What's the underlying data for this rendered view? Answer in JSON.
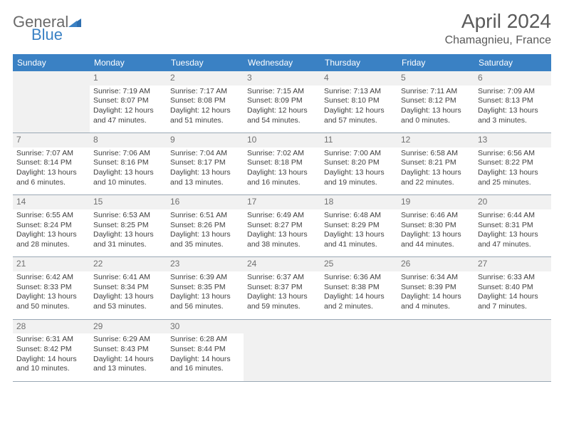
{
  "brand": {
    "general": "General",
    "blue": "Blue"
  },
  "title": "April 2024",
  "location": "Chamagnieu, France",
  "colors": {
    "header_bg": "#3a81c4",
    "header_fg": "#ffffff",
    "text": "#404040",
    "daynum_bg": "#f1f1f1",
    "border": "#9aa8b5",
    "brand_gray": "#6a6a6a",
    "brand_blue": "#3a81c4"
  },
  "day_labels": [
    "Sunday",
    "Monday",
    "Tuesday",
    "Wednesday",
    "Thursday",
    "Friday",
    "Saturday"
  ],
  "weeks": [
    [
      null,
      {
        "n": "1",
        "sr": "Sunrise: 7:19 AM",
        "ss": "Sunset: 8:07 PM",
        "d1": "Daylight: 12 hours",
        "d2": "and 47 minutes."
      },
      {
        "n": "2",
        "sr": "Sunrise: 7:17 AM",
        "ss": "Sunset: 8:08 PM",
        "d1": "Daylight: 12 hours",
        "d2": "and 51 minutes."
      },
      {
        "n": "3",
        "sr": "Sunrise: 7:15 AM",
        "ss": "Sunset: 8:09 PM",
        "d1": "Daylight: 12 hours",
        "d2": "and 54 minutes."
      },
      {
        "n": "4",
        "sr": "Sunrise: 7:13 AM",
        "ss": "Sunset: 8:10 PM",
        "d1": "Daylight: 12 hours",
        "d2": "and 57 minutes."
      },
      {
        "n": "5",
        "sr": "Sunrise: 7:11 AM",
        "ss": "Sunset: 8:12 PM",
        "d1": "Daylight: 13 hours",
        "d2": "and 0 minutes."
      },
      {
        "n": "6",
        "sr": "Sunrise: 7:09 AM",
        "ss": "Sunset: 8:13 PM",
        "d1": "Daylight: 13 hours",
        "d2": "and 3 minutes."
      }
    ],
    [
      {
        "n": "7",
        "sr": "Sunrise: 7:07 AM",
        "ss": "Sunset: 8:14 PM",
        "d1": "Daylight: 13 hours",
        "d2": "and 6 minutes."
      },
      {
        "n": "8",
        "sr": "Sunrise: 7:06 AM",
        "ss": "Sunset: 8:16 PM",
        "d1": "Daylight: 13 hours",
        "d2": "and 10 minutes."
      },
      {
        "n": "9",
        "sr": "Sunrise: 7:04 AM",
        "ss": "Sunset: 8:17 PM",
        "d1": "Daylight: 13 hours",
        "d2": "and 13 minutes."
      },
      {
        "n": "10",
        "sr": "Sunrise: 7:02 AM",
        "ss": "Sunset: 8:18 PM",
        "d1": "Daylight: 13 hours",
        "d2": "and 16 minutes."
      },
      {
        "n": "11",
        "sr": "Sunrise: 7:00 AM",
        "ss": "Sunset: 8:20 PM",
        "d1": "Daylight: 13 hours",
        "d2": "and 19 minutes."
      },
      {
        "n": "12",
        "sr": "Sunrise: 6:58 AM",
        "ss": "Sunset: 8:21 PM",
        "d1": "Daylight: 13 hours",
        "d2": "and 22 minutes."
      },
      {
        "n": "13",
        "sr": "Sunrise: 6:56 AM",
        "ss": "Sunset: 8:22 PM",
        "d1": "Daylight: 13 hours",
        "d2": "and 25 minutes."
      }
    ],
    [
      {
        "n": "14",
        "sr": "Sunrise: 6:55 AM",
        "ss": "Sunset: 8:24 PM",
        "d1": "Daylight: 13 hours",
        "d2": "and 28 minutes."
      },
      {
        "n": "15",
        "sr": "Sunrise: 6:53 AM",
        "ss": "Sunset: 8:25 PM",
        "d1": "Daylight: 13 hours",
        "d2": "and 31 minutes."
      },
      {
        "n": "16",
        "sr": "Sunrise: 6:51 AM",
        "ss": "Sunset: 8:26 PM",
        "d1": "Daylight: 13 hours",
        "d2": "and 35 minutes."
      },
      {
        "n": "17",
        "sr": "Sunrise: 6:49 AM",
        "ss": "Sunset: 8:27 PM",
        "d1": "Daylight: 13 hours",
        "d2": "and 38 minutes."
      },
      {
        "n": "18",
        "sr": "Sunrise: 6:48 AM",
        "ss": "Sunset: 8:29 PM",
        "d1": "Daylight: 13 hours",
        "d2": "and 41 minutes."
      },
      {
        "n": "19",
        "sr": "Sunrise: 6:46 AM",
        "ss": "Sunset: 8:30 PM",
        "d1": "Daylight: 13 hours",
        "d2": "and 44 minutes."
      },
      {
        "n": "20",
        "sr": "Sunrise: 6:44 AM",
        "ss": "Sunset: 8:31 PM",
        "d1": "Daylight: 13 hours",
        "d2": "and 47 minutes."
      }
    ],
    [
      {
        "n": "21",
        "sr": "Sunrise: 6:42 AM",
        "ss": "Sunset: 8:33 PM",
        "d1": "Daylight: 13 hours",
        "d2": "and 50 minutes."
      },
      {
        "n": "22",
        "sr": "Sunrise: 6:41 AM",
        "ss": "Sunset: 8:34 PM",
        "d1": "Daylight: 13 hours",
        "d2": "and 53 minutes."
      },
      {
        "n": "23",
        "sr": "Sunrise: 6:39 AM",
        "ss": "Sunset: 8:35 PM",
        "d1": "Daylight: 13 hours",
        "d2": "and 56 minutes."
      },
      {
        "n": "24",
        "sr": "Sunrise: 6:37 AM",
        "ss": "Sunset: 8:37 PM",
        "d1": "Daylight: 13 hours",
        "d2": "and 59 minutes."
      },
      {
        "n": "25",
        "sr": "Sunrise: 6:36 AM",
        "ss": "Sunset: 8:38 PM",
        "d1": "Daylight: 14 hours",
        "d2": "and 2 minutes."
      },
      {
        "n": "26",
        "sr": "Sunrise: 6:34 AM",
        "ss": "Sunset: 8:39 PM",
        "d1": "Daylight: 14 hours",
        "d2": "and 4 minutes."
      },
      {
        "n": "27",
        "sr": "Sunrise: 6:33 AM",
        "ss": "Sunset: 8:40 PM",
        "d1": "Daylight: 14 hours",
        "d2": "and 7 minutes."
      }
    ],
    [
      {
        "n": "28",
        "sr": "Sunrise: 6:31 AM",
        "ss": "Sunset: 8:42 PM",
        "d1": "Daylight: 14 hours",
        "d2": "and 10 minutes."
      },
      {
        "n": "29",
        "sr": "Sunrise: 6:29 AM",
        "ss": "Sunset: 8:43 PM",
        "d1": "Daylight: 14 hours",
        "d2": "and 13 minutes."
      },
      {
        "n": "30",
        "sr": "Sunrise: 6:28 AM",
        "ss": "Sunset: 8:44 PM",
        "d1": "Daylight: 14 hours",
        "d2": "and 16 minutes."
      },
      null,
      null,
      null,
      null
    ]
  ]
}
